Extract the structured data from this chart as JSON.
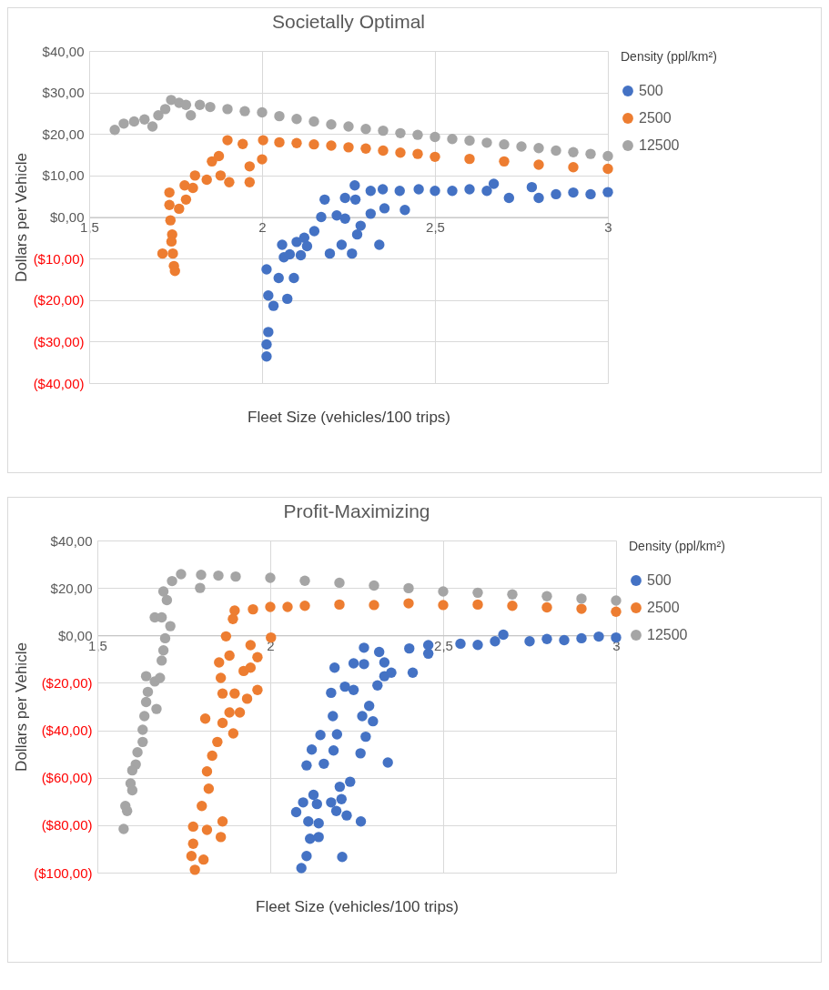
{
  "chart_data": [
    {
      "type": "scatter",
      "title": "Societally Optimal",
      "xlabel": "Fleet Size (vehicles/100 trips)",
      "ylabel": "Dollars per Vehicle",
      "legend_title": "Density (ppl/km²)",
      "legend": "right",
      "grid": true,
      "marker": "circle",
      "xlim": [
        1.5,
        3
      ],
      "xticks": [
        {
          "value": 1.5,
          "label": "1,5"
        },
        {
          "value": 2,
          "label": "2"
        },
        {
          "value": 2.5,
          "label": "2,5"
        },
        {
          "value": 3,
          "label": "3"
        }
      ],
      "ylim": [
        -40,
        40
      ],
      "yticks": [
        {
          "value": -40,
          "label": "($40,00)"
        },
        {
          "value": -30,
          "label": "($30,00)"
        },
        {
          "value": -20,
          "label": "($20,00)"
        },
        {
          "value": -10,
          "label": "($10,00)"
        },
        {
          "value": 0,
          "label": "$0,00"
        },
        {
          "value": 10,
          "label": "$10,00"
        },
        {
          "value": 20,
          "label": "$20,00"
        },
        {
          "value": 30,
          "label": "$30,00"
        },
        {
          "value": 40,
          "label": "$40,00"
        }
      ],
      "series": [
        {
          "name": "500",
          "color": "#4472c4",
          "x": [
            2.013,
            2.013,
            2.018,
            2.033,
            2.018,
            2.073,
            2.013,
            2.048,
            2.092,
            2.058,
            2.063,
            2.08,
            2.1,
            2.112,
            2.122,
            2.13,
            2.151,
            2.171,
            2.181,
            2.196,
            2.23,
            2.216,
            2.24,
            2.26,
            2.24,
            2.268,
            2.27,
            2.275,
            2.285,
            2.314,
            2.314,
            2.339,
            2.349,
            2.354,
            2.413,
            2.398,
            2.453,
            2.5,
            2.55,
            2.6,
            2.65,
            2.67,
            2.714,
            2.78,
            2.8,
            2.85,
            2.9,
            2.95,
            3.0
          ],
          "values": [
            -33.6,
            -30.7,
            -27.7,
            -21.4,
            -18.9,
            -19.7,
            -12.6,
            -14.7,
            -14.7,
            -6.7,
            -9.7,
            -9,
            -6,
            -9.2,
            -5,
            -7,
            -3.4,
            0,
            4.2,
            -8.8,
            -6.7,
            0.4,
            -0.4,
            -8.8,
            4.6,
            7.6,
            4.2,
            -4.2,
            -2.1,
            0.8,
            6.3,
            -6.7,
            6.7,
            2.1,
            1.7,
            6.3,
            6.7,
            6.3,
            6.3,
            6.7,
            6.3,
            8,
            4.6,
            7.2,
            4.6,
            5.5,
            5.9,
            5.5,
            6
          ]
        },
        {
          "name": "2500",
          "color": "#ed7d31",
          "x": [
            1.732,
            1.732,
            1.735,
            1.74,
            1.738,
            1.742,
            1.745,
            1.748,
            1.712,
            1.76,
            1.776,
            1.78,
            1.8,
            1.806,
            1.84,
            1.855,
            1.875,
            1.88,
            1.9,
            1.905,
            1.964,
            1.964,
            1.944,
            2.0,
            2.003,
            2.05,
            2.1,
            2.15,
            2.2,
            2.25,
            2.3,
            2.35,
            2.4,
            2.45,
            2.5,
            2.6,
            2.7,
            2.8,
            2.9,
            3.0
          ],
          "values": [
            5.9,
            2.9,
            -0.8,
            -4.2,
            -5.9,
            -8.8,
            -11.8,
            -13,
            -8.8,
            2,
            7.6,
            4.2,
            7,
            10,
            9,
            13.4,
            14.7,
            10,
            18.5,
            8.4,
            8.4,
            12.2,
            17.6,
            13.9,
            18.5,
            18,
            17.8,
            17.5,
            17.2,
            16.8,
            16.5,
            16,
            15.5,
            15.2,
            14.5,
            14,
            13.4,
            12.6,
            12,
            11.6
          ]
        },
        {
          "name": "12500",
          "color": "#a5a5a5",
          "x": [
            1.574,
            1.6,
            1.63,
            1.66,
            1.683,
            1.7,
            1.72,
            1.737,
            1.76,
            1.78,
            1.794,
            1.82,
            1.85,
            1.9,
            1.95,
            2.0,
            2.05,
            2.1,
            2.15,
            2.2,
            2.25,
            2.3,
            2.35,
            2.4,
            2.45,
            2.5,
            2.55,
            2.6,
            2.65,
            2.7,
            2.75,
            2.8,
            2.85,
            2.9,
            2.95,
            3.0
          ],
          "values": [
            21,
            22.5,
            23,
            23.5,
            21.8,
            24.5,
            26,
            28.2,
            27.5,
            27,
            24.5,
            27,
            26.5,
            26,
            25.5,
            25.2,
            24.3,
            23.6,
            23,
            22.3,
            21.8,
            21.2,
            20.8,
            20.2,
            19.8,
            19.3,
            18.8,
            18.4,
            17.9,
            17.5,
            17,
            16.6,
            16,
            15.6,
            15.2,
            14.7
          ]
        }
      ]
    },
    {
      "type": "scatter",
      "title": "Profit-Maximizing",
      "xlabel": "Fleet Size (vehicles/100 trips)",
      "ylabel": "Dollars per Vehicle",
      "legend_title": "Density (ppl/km²)",
      "legend": "right",
      "grid": true,
      "marker": "circle",
      "xlim": [
        1.5,
        3
      ],
      "xticks": [
        {
          "value": 1.5,
          "label": "1,5"
        },
        {
          "value": 2,
          "label": "2"
        },
        {
          "value": 2.5,
          "label": "2,5"
        },
        {
          "value": 3,
          "label": "3"
        }
      ],
      "ylim": [
        -100,
        40
      ],
      "yticks": [
        {
          "value": -100,
          "label": "($100,00)"
        },
        {
          "value": -80,
          "label": "($80,00)"
        },
        {
          "value": -60,
          "label": "($60,00)"
        },
        {
          "value": -40,
          "label": "($40,00)"
        },
        {
          "value": -20,
          "label": "($20,00)"
        },
        {
          "value": 0,
          "label": "$0,00"
        },
        {
          "value": 20,
          "label": "$20,00"
        },
        {
          "value": 40,
          "label": "$40,00"
        }
      ],
      "series": [
        {
          "name": "500",
          "color": "#4472c4",
          "x": [
            2.09,
            2.105,
            2.208,
            2.115,
            2.14,
            2.11,
            2.14,
            2.075,
            2.095,
            2.125,
            2.135,
            2.176,
            2.191,
            2.221,
            2.262,
            2.206,
            2.201,
            2.231,
            2.105,
            2.155,
            2.12,
            2.145,
            2.183,
            2.193,
            2.261,
            2.34,
            2.276,
            2.297,
            2.266,
            2.181,
            2.286,
            2.176,
            2.216,
            2.241,
            2.31,
            2.33,
            2.35,
            2.186,
            2.412,
            2.241,
            2.271,
            2.271,
            2.33,
            2.315,
            2.402,
            2.457,
            2.457,
            2.55,
            2.6,
            2.65,
            2.674,
            2.75,
            2.8,
            2.85,
            2.9,
            2.95,
            3.0
          ],
          "values": [
            -98.1,
            -93,
            -93.4,
            -85.7,
            -85,
            -78.4,
            -79.2,
            -74.5,
            -70.4,
            -67.2,
            -71.1,
            -70.4,
            -74,
            -75.9,
            -78.4,
            -69,
            -63.8,
            -61.7,
            -54.8,
            -54.1,
            -48.1,
            -42,
            -48.5,
            -41.7,
            -49.7,
            -53.6,
            -42.7,
            -36.2,
            -34,
            -34,
            -29.7,
            -24.2,
            -21.6,
            -23,
            -21.1,
            -17.2,
            -15.7,
            -13.6,
            -15.7,
            -11.8,
            -12.1,
            -5.2,
            -11.4,
            -7,
            -5.5,
            -7.7,
            -4.1,
            -3.5,
            -4,
            -2.5,
            0.3,
            -2.5,
            -1.5,
            -2,
            -1.2,
            -0.5,
            -0.9
          ]
        },
        {
          "name": "2500",
          "color": "#ed7d31",
          "x": [
            1.782,
            1.772,
            1.807,
            1.777,
            1.777,
            1.817,
            1.857,
            1.862,
            1.812,
            1.802,
            1.822,
            1.817,
            1.832,
            1.847,
            1.862,
            1.893,
            1.882,
            1.912,
            1.862,
            1.897,
            1.933,
            1.963,
            1.857,
            1.923,
            1.943,
            1.852,
            1.882,
            1.963,
            1.943,
            1.872,
            2.002,
            1.892,
            1.897,
            1.95,
            2.0,
            2.05,
            2.1,
            2.2,
            2.3,
            2.4,
            2.5,
            2.6,
            2.7,
            2.8,
            2.9,
            3.0
          ],
          "values": [
            -98.8,
            -93,
            -94.5,
            -87.8,
            -80.6,
            -82,
            -85,
            -78.4,
            -35.1,
            -71.9,
            -64.6,
            -57.3,
            -50.7,
            -44.9,
            -36.9,
            -41.3,
            -32.5,
            -32.5,
            -24.5,
            -24.5,
            -26.7,
            -23,
            -17.9,
            -15,
            -13.6,
            -11.4,
            -8.5,
            -9.2,
            -4.1,
            -0.4,
            -0.9,
            6.9,
            10.5,
            11,
            12,
            12,
            12.5,
            13,
            12.8,
            13.5,
            12.8,
            13,
            12.5,
            11.8,
            11.2,
            10
          ]
        },
        {
          "name": "12500",
          "color": "#a5a5a5",
          "x": [
            1.576,
            1.586,
            1.581,
            1.601,
            1.596,
            1.611,
            1.601,
            1.616,
            1.631,
            1.631,
            1.636,
            1.641,
            1.671,
            1.646,
            1.666,
            1.641,
            1.681,
            1.686,
            1.691,
            1.696,
            1.711,
            1.666,
            1.686,
            1.701,
            1.691,
            1.716,
            1.742,
            1.797,
            1.8,
            1.85,
            1.9,
            2.0,
            2.1,
            2.2,
            2.3,
            2.4,
            2.5,
            2.6,
            2.7,
            2.8,
            2.9,
            3.0
          ],
          "values": [
            -81.6,
            -74,
            -71.9,
            -65.3,
            -62.4,
            -54.4,
            -56.9,
            -49.3,
            -44.9,
            -39.8,
            -34,
            -28.1,
            -31,
            -23.8,
            -19.4,
            -17.2,
            -17.9,
            -10.6,
            -6.3,
            -1.2,
            3.9,
            7.6,
            7.6,
            14.9,
            18.5,
            22.9,
            25.8,
            20,
            25.5,
            25.2,
            24.8,
            24.3,
            23,
            22.2,
            21,
            19.9,
            18.5,
            18,
            17.3,
            16.5,
            15.5,
            14.7
          ]
        }
      ]
    }
  ]
}
